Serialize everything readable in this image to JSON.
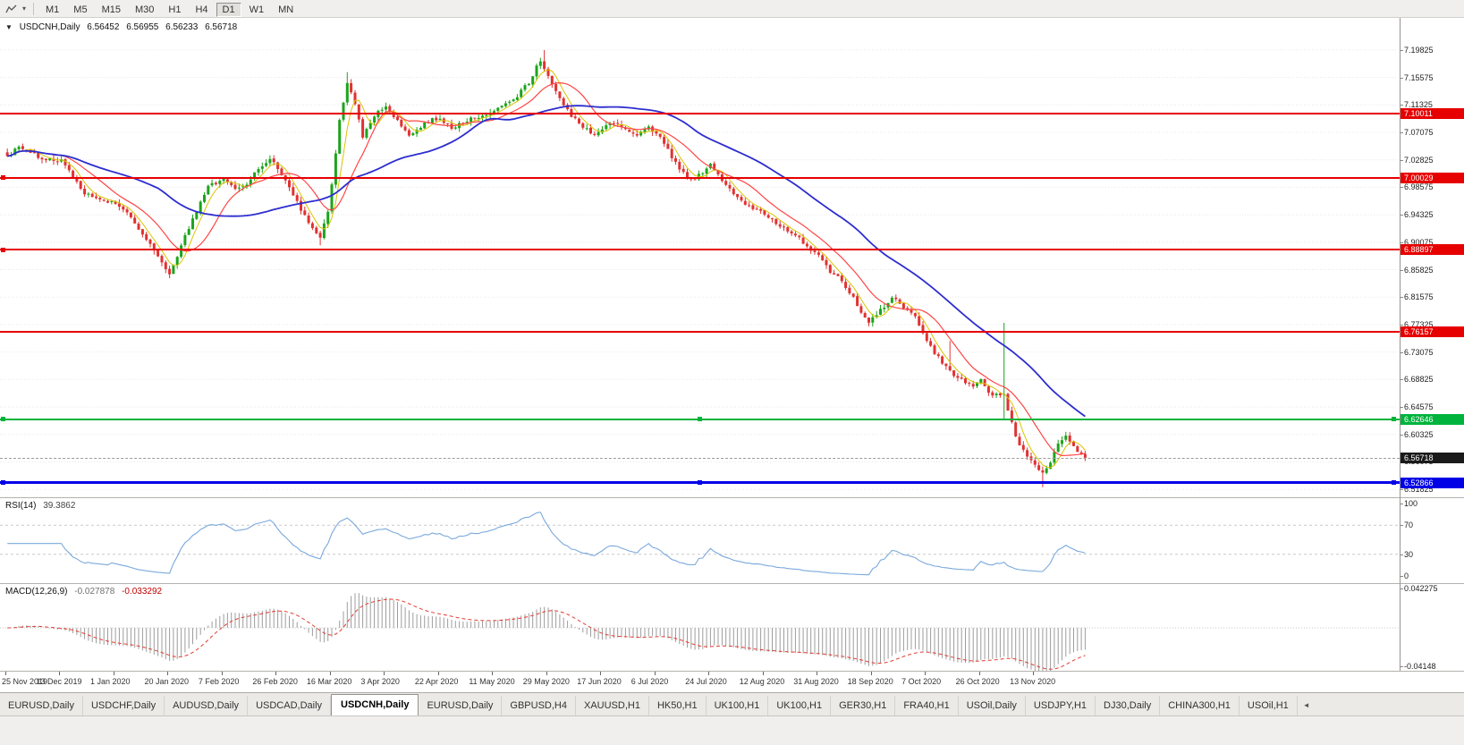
{
  "toolbar": {
    "dropdown_icon": "▾",
    "timeframes": [
      {
        "label": "M1",
        "active": false
      },
      {
        "label": "M5",
        "active": false
      },
      {
        "label": "M15",
        "active": false
      },
      {
        "label": "M30",
        "active": false
      },
      {
        "label": "H1",
        "active": false
      },
      {
        "label": "H4",
        "active": false
      },
      {
        "label": "D1",
        "active": true
      },
      {
        "label": "W1",
        "active": false
      },
      {
        "label": "MN",
        "active": false
      }
    ]
  },
  "chart_header": {
    "collapse_icon": "▼",
    "symbol": "USDCNH,Daily",
    "open": "6.56452",
    "high": "6.56955",
    "low": "6.56233",
    "close": "6.56718"
  },
  "chart_data": {
    "type": "candlestick",
    "symbol": "USDCNH",
    "period": "Daily",
    "title": "USDCNH,Daily",
    "current_ohlc": {
      "open": 6.56452,
      "high": 6.56955,
      "low": 6.56233,
      "close": 6.56718
    },
    "ylim": [
      6.506,
      7.248
    ],
    "y_ticks": [
      "7.19825",
      "7.15575",
      "7.11325",
      "7.07075",
      "7.02825",
      "6.98575",
      "6.94325",
      "6.90075",
      "6.85825",
      "6.81575",
      "6.77325",
      "6.73075",
      "6.68825",
      "6.64575",
      "6.60325",
      "6.56075",
      "6.51825"
    ],
    "x_labels": [
      "25 Nov 2019",
      "13 Dec 2019",
      "1 Jan 2020",
      "20 Jan 2020",
      "7 Feb 2020",
      "26 Feb 2020",
      "16 Mar 2020",
      "3 Apr 2020",
      "22 Apr 2020",
      "11 May 2020",
      "29 May 2020",
      "17 Jun 2020",
      "6 Jul 2020",
      "24 Jul 2020",
      "12 Aug 2020",
      "31 Aug 2020",
      "18 Sep 2020",
      "7 Oct 2020",
      "26 Oct 2020",
      "13 Nov 2020"
    ],
    "label_every": 14,
    "count": 280,
    "seed": 987654321,
    "noise": 0.006,
    "wick": 0.0065,
    "up_color": "#1ca41c",
    "down_color": "#e03232",
    "anchors": [
      [
        0,
        7.034
      ],
      [
        3,
        7.048
      ],
      [
        6,
        7.04
      ],
      [
        10,
        7.028
      ],
      [
        14,
        7.028
      ],
      [
        17,
        7.002
      ],
      [
        20,
        6.976
      ],
      [
        24,
        6.965
      ],
      [
        28,
        6.962
      ],
      [
        31,
        6.945
      ],
      [
        34,
        6.92
      ],
      [
        37,
        6.896
      ],
      [
        40,
        6.872
      ],
      [
        42,
        6.85
      ],
      [
        44,
        6.876
      ],
      [
        46,
        6.91
      ],
      [
        48,
        6.936
      ],
      [
        50,
        6.962
      ],
      [
        52,
        6.986
      ],
      [
        56,
        7.0
      ],
      [
        59,
        6.981
      ],
      [
        62,
        6.99
      ],
      [
        65,
        7.014
      ],
      [
        68,
        7.03
      ],
      [
        70,
        7.016
      ],
      [
        73,
        6.986
      ],
      [
        76,
        6.952
      ],
      [
        79,
        6.922
      ],
      [
        81,
        6.906
      ],
      [
        83,
        6.95
      ],
      [
        84,
        6.99
      ],
      [
        86,
        7.088
      ],
      [
        88,
        7.15
      ],
      [
        90,
        7.115
      ],
      [
        92,
        7.062
      ],
      [
        94,
        7.086
      ],
      [
        96,
        7.104
      ],
      [
        98,
        7.11
      ],
      [
        101,
        7.09
      ],
      [
        104,
        7.066
      ],
      [
        107,
        7.08
      ],
      [
        110,
        7.09
      ],
      [
        112,
        7.094
      ],
      [
        115,
        7.076
      ],
      [
        118,
        7.086
      ],
      [
        121,
        7.094
      ],
      [
        124,
        7.1
      ],
      [
        126,
        7.104
      ],
      [
        129,
        7.114
      ],
      [
        132,
        7.128
      ],
      [
        135,
        7.148
      ],
      [
        138,
        7.183
      ],
      [
        140,
        7.16
      ],
      [
        143,
        7.124
      ],
      [
        146,
        7.096
      ],
      [
        149,
        7.08
      ],
      [
        152,
        7.068
      ],
      [
        154,
        7.076
      ],
      [
        157,
        7.086
      ],
      [
        160,
        7.076
      ],
      [
        163,
        7.068
      ],
      [
        166,
        7.078
      ],
      [
        168,
        7.07
      ],
      [
        171,
        7.044
      ],
      [
        174,
        7.012
      ],
      [
        177,
        6.996
      ],
      [
        180,
        7.01
      ],
      [
        182,
        7.02
      ],
      [
        185,
        6.996
      ],
      [
        188,
        6.976
      ],
      [
        191,
        6.96
      ],
      [
        194,
        6.95
      ],
      [
        196,
        6.944
      ],
      [
        199,
        6.93
      ],
      [
        202,
        6.92
      ],
      [
        205,
        6.906
      ],
      [
        208,
        6.89
      ],
      [
        210,
        6.88
      ],
      [
        213,
        6.856
      ],
      [
        216,
        6.84
      ],
      [
        219,
        6.814
      ],
      [
        221,
        6.79
      ],
      [
        223,
        6.776
      ],
      [
        226,
        6.795
      ],
      [
        229,
        6.815
      ],
      [
        232,
        6.8
      ],
      [
        235,
        6.786
      ],
      [
        238,
        6.748
      ],
      [
        241,
        6.722
      ],
      [
        244,
        6.7
      ],
      [
        247,
        6.69
      ],
      [
        250,
        6.676
      ],
      [
        252,
        6.686
      ],
      [
        255,
        6.662
      ],
      [
        258,
        6.666
      ],
      [
        260,
        6.62
      ],
      [
        262,
        6.586
      ],
      [
        264,
        6.57
      ],
      [
        266,
        6.556
      ],
      [
        268,
        6.545
      ],
      [
        270,
        6.561
      ],
      [
        272,
        6.59
      ],
      [
        274,
        6.604
      ],
      [
        276,
        6.586
      ],
      [
        278,
        6.571
      ],
      [
        279,
        6.56718
      ]
    ],
    "wick_overrides": [
      {
        "i": 42,
        "low": 6.8452
      },
      {
        "i": 81,
        "low": 6.896
      },
      {
        "i": 88,
        "high": 7.164
      },
      {
        "i": 139,
        "high": 7.1982
      },
      {
        "i": 244,
        "high": 6.748
      },
      {
        "i": 258,
        "high": 6.776,
        "low": 6.627
      },
      {
        "i": 268,
        "low": 6.5215
      }
    ],
    "moving_averages": [
      {
        "period": 5,
        "color": "#d9c400",
        "width": 1
      },
      {
        "period": 13,
        "color": "#ff4545",
        "width": 1.2
      },
      {
        "period": 40,
        "color": "#2d2dcf",
        "width": 1.8
      }
    ],
    "hlines": [
      {
        "price": 7.10011,
        "label": "7.10011",
        "color": "#e60000",
        "thickness": 2,
        "handles": "none"
      },
      {
        "price": 7.00029,
        "label": "7.00029",
        "color": "#e60000",
        "thickness": 2,
        "handles": "left"
      },
      {
        "price": 6.88897,
        "label": "6.88897",
        "color": "#e60000",
        "thickness": 2,
        "handles": "left"
      },
      {
        "price": 6.76157,
        "label": "6.76157",
        "color": "#e60000",
        "thickness": 2,
        "handles": "none"
      },
      {
        "price": 6.62646,
        "label": "6.62646",
        "color": "#00b33c",
        "thickness": 2,
        "handles": "lmr"
      },
      {
        "price": 6.52866,
        "label": "6.52866",
        "color": "#0000e6",
        "thickness": 3,
        "handles": "lmr"
      }
    ],
    "current_price": {
      "value": 6.56718,
      "label": "6.56718",
      "tag_color": "#1a1a1a"
    },
    "rsi": {
      "name_label": "RSI(14)",
      "value_label": "39.3862",
      "period": 14,
      "color": "#7aa9dc",
      "levels": [
        70,
        30
      ],
      "scale_labels": [
        "100",
        "70",
        "30",
        "0"
      ],
      "ylim": [
        0,
        100
      ]
    },
    "macd": {
      "name_label": "MACD(12,26,9)",
      "main_value_label": "-0.027878",
      "signal_value_label": "-0.033292",
      "fast": 12,
      "slow": 26,
      "signal": 9,
      "ylim": [
        -0.046,
        0.047
      ],
      "scale_top_label": "0.042275",
      "scale_bottom_label": "-0.04148",
      "histogram_color": "#9c9c9c",
      "signal_color": "#e03c31"
    }
  },
  "tabs": [
    {
      "label": "EURUSD,Daily",
      "active": false
    },
    {
      "label": "USDCHF,Daily",
      "active": false
    },
    {
      "label": "AUDUSD,Daily",
      "active": false
    },
    {
      "label": "USDCAD,Daily",
      "active": false
    },
    {
      "label": "USDCNH,Daily",
      "active": true
    },
    {
      "label": "EURUSD,Daily",
      "active": false
    },
    {
      "label": "GBPUSD,H4",
      "active": false
    },
    {
      "label": "XAUUSD,H1",
      "active": false
    },
    {
      "label": "HK50,H1",
      "active": false
    },
    {
      "label": "UK100,H1",
      "active": false
    },
    {
      "label": "UK100,H1",
      "active": false
    },
    {
      "label": "GER30,H1",
      "active": false
    },
    {
      "label": "FRA40,H1",
      "active": false
    },
    {
      "label": "USOil,Daily",
      "active": false
    },
    {
      "label": "USDJPY,H1",
      "active": false
    },
    {
      "label": "DJ30,Daily",
      "active": false
    },
    {
      "label": "CHINA300,H1",
      "active": false
    },
    {
      "label": "USOil,H1",
      "active": false
    }
  ],
  "tab_scroll_icon": "◄"
}
